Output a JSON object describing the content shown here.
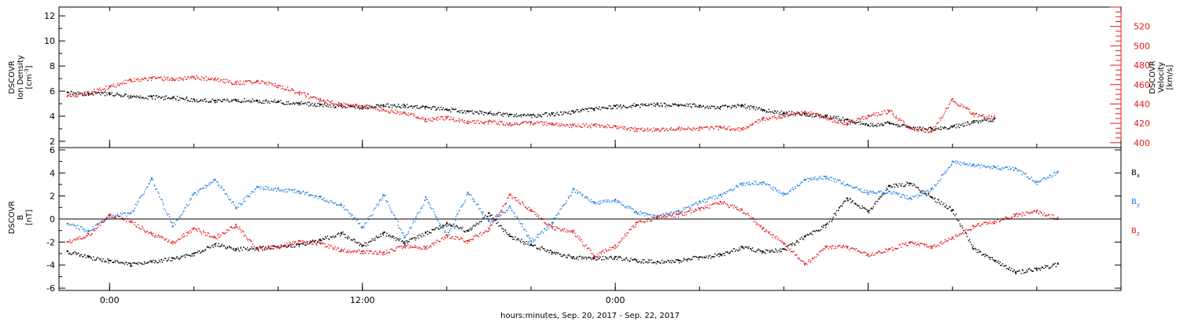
{
  "chart_data": [
    {
      "type": "scatter",
      "panel": "top",
      "ylabel_left": [
        "DSCOVR",
        "Ion Density",
        "[cm^-3]"
      ],
      "ylabel_right": [
        "DSCOVR",
        "Velocity",
        "[km/s]"
      ],
      "ylim_left": [
        1.5,
        12.7
      ],
      "ylim_right": [
        395,
        540
      ],
      "yticks_left": [
        "2",
        "4",
        "6",
        "8",
        "10",
        "12"
      ],
      "yticks_right": [
        "400",
        "420",
        "440",
        "460",
        "480",
        "500",
        "520"
      ],
      "grid": false,
      "series": [
        {
          "axis": "left",
          "color": "#000000",
          "points": [
            [
              -2,
              5.9
            ],
            [
              -1,
              5.8
            ],
            [
              0,
              5.85
            ],
            [
              1,
              5.6
            ],
            [
              2,
              5.55
            ],
            [
              3,
              5.5
            ],
            [
              4,
              5.35
            ],
            [
              5,
              5.25
            ],
            [
              6,
              5.3
            ],
            [
              7,
              5.25
            ],
            [
              8,
              5.15
            ],
            [
              9,
              5.05
            ],
            [
              10,
              4.95
            ],
            [
              11,
              4.85
            ],
            [
              12,
              4.75
            ],
            [
              13,
              4.9
            ],
            [
              14,
              4.85
            ],
            [
              15,
              4.75
            ],
            [
              16,
              4.55
            ],
            [
              17,
              4.4
            ],
            [
              18,
              4.25
            ],
            [
              19,
              4.15
            ],
            [
              20,
              4.1
            ],
            [
              21,
              4.2
            ],
            [
              22,
              4.4
            ],
            [
              23,
              4.6
            ],
            [
              24,
              4.8
            ],
            [
              25,
              4.9
            ],
            [
              26,
              4.95
            ],
            [
              27,
              4.9
            ],
            [
              28,
              4.85
            ],
            [
              29,
              4.75
            ],
            [
              30,
              4.9
            ],
            [
              31,
              4.5
            ],
            [
              32,
              4.3
            ],
            [
              33,
              4.2
            ],
            [
              34,
              4.0
            ],
            [
              35,
              3.75
            ],
            [
              36,
              3.3
            ],
            [
              37,
              3.5
            ],
            [
              38,
              3.1
            ],
            [
              39,
              3.0
            ],
            [
              40,
              3.15
            ],
            [
              41,
              3.6
            ],
            [
              42,
              3.8
            ]
          ]
        },
        {
          "axis": "right",
          "color": "#e41a1c",
          "points": [
            [
              -2,
              448
            ],
            [
              -1,
              452
            ],
            [
              0,
              458
            ],
            [
              1,
              465
            ],
            [
              2,
              467
            ],
            [
              3,
              466
            ],
            [
              4,
              468
            ],
            [
              5,
              466
            ],
            [
              6,
              462
            ],
            [
              7,
              464
            ],
            [
              8,
              459
            ],
            [
              9,
              452
            ],
            [
              10,
              444
            ],
            [
              11,
              440
            ],
            [
              12,
              438
            ],
            [
              13,
              434
            ],
            [
              14,
              431
            ],
            [
              15,
              424
            ],
            [
              16,
              426
            ],
            [
              17,
              422
            ],
            [
              18,
              422
            ],
            [
              19,
              420
            ],
            [
              20,
              421
            ],
            [
              21,
              420
            ],
            [
              22,
              418
            ],
            [
              23,
              418
            ],
            [
              24,
              417
            ],
            [
              25,
              414
            ],
            [
              26,
              414
            ],
            [
              27,
              415
            ],
            [
              28,
              415
            ],
            [
              29,
              416
            ],
            [
              30,
              414
            ],
            [
              31,
              425
            ],
            [
              32,
              428
            ],
            [
              33,
              432
            ],
            [
              34,
              426
            ],
            [
              35,
              420
            ],
            [
              36,
              428
            ],
            [
              37,
              433
            ],
            [
              38,
              415
            ],
            [
              39,
              412
            ],
            [
              40,
              445
            ],
            [
              41,
              430
            ],
            [
              42,
              426
            ]
          ]
        }
      ]
    },
    {
      "type": "scatter",
      "panel": "bottom",
      "ylabel": [
        "DSCOVR",
        "B",
        "[nT]"
      ],
      "ylim": [
        -6.2,
        6.2
      ],
      "yticks": [
        "-6",
        "-4",
        "-2",
        "0",
        "2",
        "4",
        "6"
      ],
      "zero_line": true,
      "legend": [
        "B_x",
        "B_y",
        "B_z"
      ],
      "legend_position": "right",
      "series": [
        {
          "name": "B_x",
          "color": "#000000",
          "points": [
            [
              -2,
              -2.8
            ],
            [
              -1,
              -3.3
            ],
            [
              0,
              -3.6
            ],
            [
              1,
              -3.9
            ],
            [
              2,
              -3.7
            ],
            [
              3,
              -3.4
            ],
            [
              4,
              -3.0
            ],
            [
              5,
              -2.2
            ],
            [
              6,
              -2.6
            ],
            [
              7,
              -2.5
            ],
            [
              8,
              -2.4
            ],
            [
              9,
              -2.2
            ],
            [
              10,
              -1.8
            ],
            [
              11,
              -1.2
            ],
            [
              12,
              -2.3
            ],
            [
              13,
              -1.2
            ],
            [
              14,
              -2.0
            ],
            [
              15,
              -1.2
            ],
            [
              16,
              -0.4
            ],
            [
              17,
              -1.0
            ],
            [
              18,
              0.5
            ],
            [
              19,
              -1.5
            ],
            [
              20,
              -2.2
            ],
            [
              21,
              -2.9
            ],
            [
              22,
              -3.3
            ],
            [
              23,
              -3.4
            ],
            [
              24,
              -3.3
            ],
            [
              25,
              -3.6
            ],
            [
              26,
              -3.7
            ],
            [
              27,
              -3.6
            ],
            [
              28,
              -3.3
            ],
            [
              29,
              -3.1
            ],
            [
              30,
              -2.4
            ],
            [
              31,
              -2.8
            ],
            [
              32,
              -2.6
            ],
            [
              33,
              -1.5
            ],
            [
              34,
              -0.5
            ],
            [
              35,
              1.8
            ],
            [
              36,
              0.7
            ],
            [
              37,
              2.9
            ],
            [
              38,
              3.1
            ],
            [
              39,
              1.9
            ],
            [
              40,
              0.8
            ],
            [
              41,
              -2.6
            ],
            [
              42,
              -3.6
            ],
            [
              43,
              -4.6
            ],
            [
              44,
              -4.3
            ],
            [
              45,
              -3.9
            ]
          ]
        },
        {
          "name": "B_y",
          "color": "#1e82e6",
          "points": [
            [
              -2,
              -0.4
            ],
            [
              -1,
              -1.0
            ],
            [
              0,
              0.3
            ],
            [
              1,
              0.5
            ],
            [
              2,
              3.5
            ],
            [
              3,
              -0.6
            ],
            [
              4,
              2.2
            ],
            [
              5,
              3.4
            ],
            [
              6,
              1.0
            ],
            [
              7,
              2.8
            ],
            [
              8,
              2.6
            ],
            [
              9,
              2.4
            ],
            [
              10,
              1.9
            ],
            [
              11,
              1.2
            ],
            [
              12,
              -0.7
            ],
            [
              13,
              2.1
            ],
            [
              14,
              -1.6
            ],
            [
              15,
              1.9
            ],
            [
              16,
              -1.4
            ],
            [
              17,
              2.3
            ],
            [
              18,
              -0.2
            ],
            [
              19,
              1.1
            ],
            [
              20,
              -1.9
            ],
            [
              21,
              -0.3
            ],
            [
              22,
              2.6
            ],
            [
              23,
              1.4
            ],
            [
              24,
              1.7
            ],
            [
              25,
              0.6
            ],
            [
              26,
              0.3
            ],
            [
              27,
              0.7
            ],
            [
              28,
              1.5
            ],
            [
              29,
              2.1
            ],
            [
              30,
              3.1
            ],
            [
              31,
              3.2
            ],
            [
              32,
              2.2
            ],
            [
              33,
              3.4
            ],
            [
              34,
              3.7
            ],
            [
              35,
              3.0
            ],
            [
              36,
              2.3
            ],
            [
              37,
              2.4
            ],
            [
              38,
              1.8
            ],
            [
              39,
              2.6
            ],
            [
              40,
              5.0
            ],
            [
              41,
              4.7
            ],
            [
              42,
              4.5
            ],
            [
              43,
              4.4
            ],
            [
              44,
              3.2
            ],
            [
              45,
              4.1
            ]
          ]
        },
        {
          "name": "B_z",
          "color": "#e41a1c",
          "points": [
            [
              -2,
              -2.0
            ],
            [
              -1,
              -1.3
            ],
            [
              0,
              0.4
            ],
            [
              1,
              -0.2
            ],
            [
              2,
              -1.3
            ],
            [
              3,
              -2.0
            ],
            [
              4,
              -0.8
            ],
            [
              5,
              -1.6
            ],
            [
              6,
              -0.5
            ],
            [
              7,
              -2.6
            ],
            [
              8,
              -2.4
            ],
            [
              9,
              -1.9
            ],
            [
              10,
              -2.1
            ],
            [
              11,
              -2.7
            ],
            [
              12,
              -2.8
            ],
            [
              13,
              -2.9
            ],
            [
              14,
              -2.3
            ],
            [
              15,
              -2.5
            ],
            [
              16,
              -1.4
            ],
            [
              17,
              -1.9
            ],
            [
              18,
              -0.8
            ],
            [
              19,
              2.1
            ],
            [
              20,
              0.8
            ],
            [
              21,
              -0.7
            ],
            [
              22,
              -1.1
            ],
            [
              23,
              -3.2
            ],
            [
              24,
              -2.3
            ],
            [
              25,
              -0.3
            ],
            [
              26,
              0.2
            ],
            [
              27,
              0.4
            ],
            [
              28,
              0.9
            ],
            [
              29,
              1.5
            ],
            [
              30,
              0.8
            ],
            [
              31,
              -0.8
            ],
            [
              32,
              -2.1
            ],
            [
              33,
              -3.9
            ],
            [
              34,
              -2.4
            ],
            [
              35,
              -2.4
            ],
            [
              36,
              -3.1
            ],
            [
              37,
              -2.6
            ],
            [
              38,
              -2.0
            ],
            [
              39,
              -2.4
            ],
            [
              40,
              -1.6
            ],
            [
              41,
              -0.6
            ],
            [
              42,
              -0.2
            ],
            [
              43,
              0.4
            ],
            [
              44,
              0.7
            ],
            [
              45,
              0.1
            ]
          ]
        }
      ]
    }
  ],
  "x_axis": {
    "xlabel": "hours:minutes, Sep. 20, 2017 - Sep. 22, 2017",
    "xlim": [
      -2.4,
      48
    ],
    "major_ticks": [
      {
        "hour": 0,
        "label": "0:00"
      },
      {
        "hour": 12,
        "label": "12:00"
      },
      {
        "hour": 24,
        "label": "0:00"
      },
      {
        "hour": 36,
        "label": ""
      },
      {
        "hour": 48,
        "label": ""
      }
    ],
    "minor_tick_every_hours": 4
  }
}
